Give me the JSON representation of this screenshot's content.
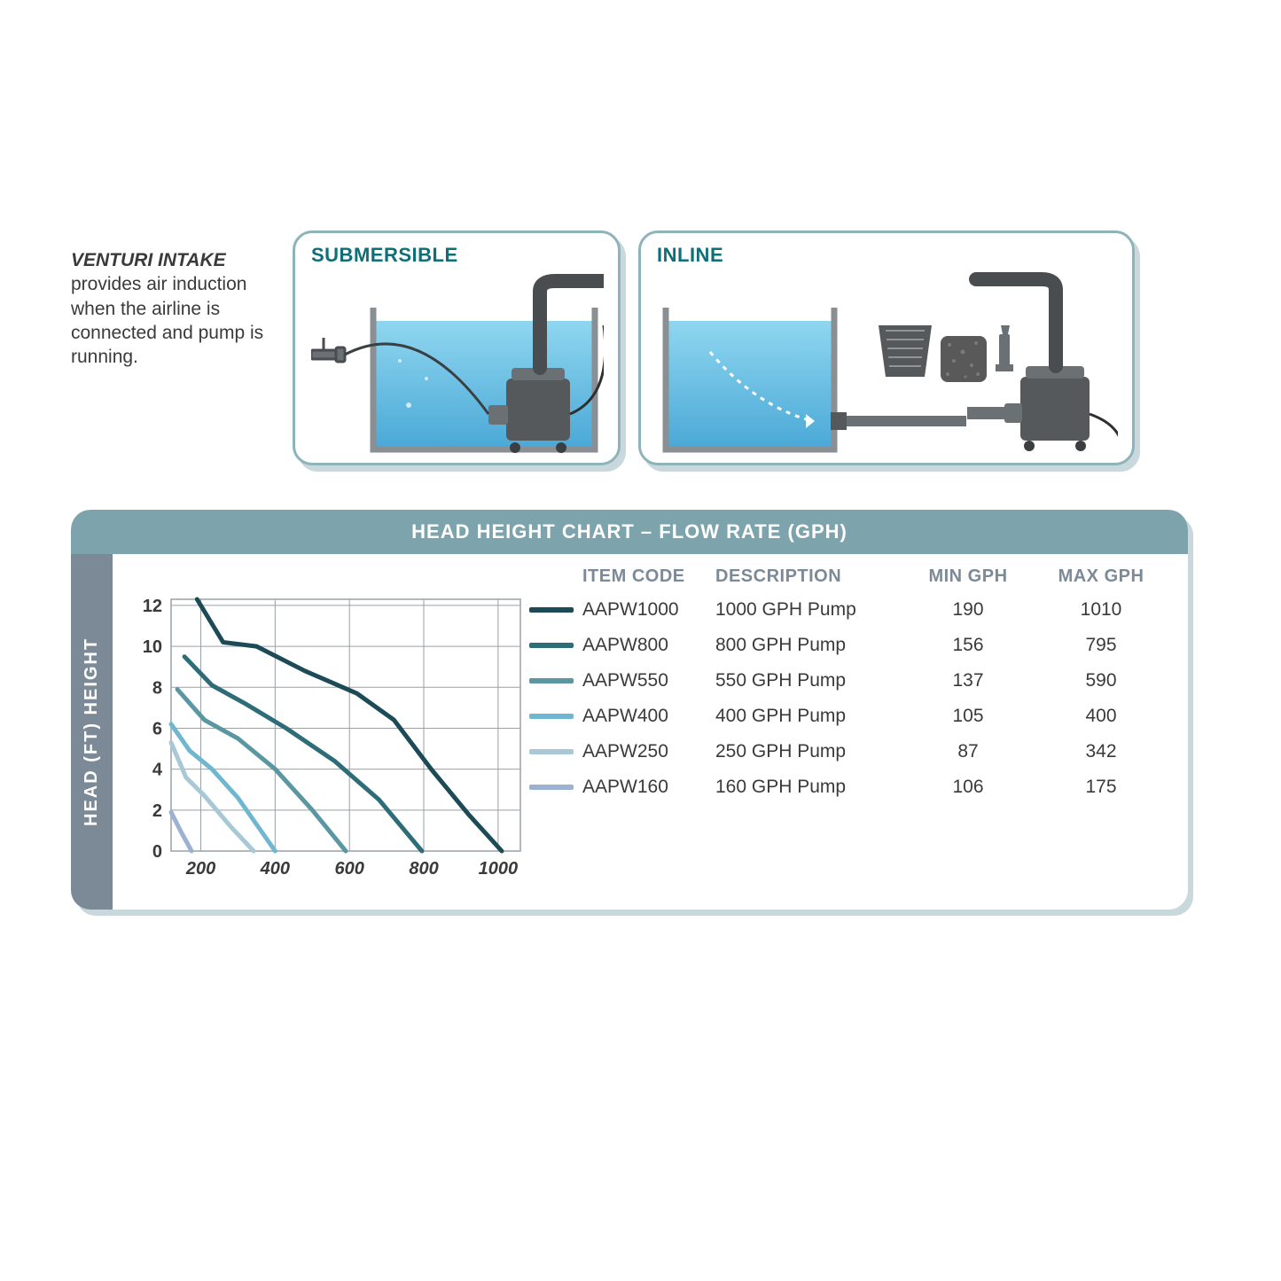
{
  "venturi": {
    "title": "VENTURI INTAKE",
    "body": "provides air induction when the airline is connected and pump is running."
  },
  "diagrams": {
    "submersible_label": "SUBMERSIBLE",
    "inline_label": "INLINE",
    "box_border": "#8db3bb",
    "box_shadow": "#c9d8dc",
    "title_color": "#0e6f79",
    "water_top": "#7fd0ef",
    "water_bottom": "#4aa8d6",
    "tank_stroke": "#8a8f93",
    "pump_dark": "#55595c",
    "pump_mid": "#6b7074",
    "hose": "#4a4d50",
    "callout_line": "#c7a23a"
  },
  "chart_panel": {
    "title": "HEAD HEIGHT CHART – FLOW RATE (GPH)",
    "title_bg": "#7da3ac",
    "side_label": "HEAD (FT) HEIGHT",
    "side_bg": "#7c8997",
    "columns": [
      "ITEM CODE",
      "DESCRIPTION",
      "MIN GPH",
      "MAX GPH"
    ],
    "header_color": "#7c8997",
    "grid_color": "#9aa0a5",
    "axis_text": "#3a3a3a",
    "axis_fontsize": 20,
    "line_width": 5,
    "xlim": [
      120,
      1060
    ],
    "ylim": [
      0,
      12.3
    ],
    "xticks": [
      200,
      400,
      600,
      800,
      1000
    ],
    "yticks": [
      0,
      2,
      4,
      6,
      8,
      10,
      12
    ],
    "series": [
      {
        "code": "AAPW1000",
        "desc": "1000 GPH Pump",
        "min": 190,
        "max": 1010,
        "color": "#1d4a57",
        "pts": [
          [
            190,
            12.4
          ],
          [
            260,
            10.2
          ],
          [
            350,
            10.0
          ],
          [
            480,
            8.8
          ],
          [
            620,
            7.7
          ],
          [
            720,
            6.4
          ],
          [
            820,
            4.0
          ],
          [
            920,
            1.8
          ],
          [
            1010,
            0
          ]
        ]
      },
      {
        "code": "AAPW800",
        "desc": "800 GPH Pump",
        "min": 156,
        "max": 795,
        "color": "#2e6d78",
        "pts": [
          [
            156,
            9.5
          ],
          [
            230,
            8.1
          ],
          [
            320,
            7.2
          ],
          [
            430,
            6.0
          ],
          [
            560,
            4.4
          ],
          [
            680,
            2.5
          ],
          [
            795,
            0
          ]
        ]
      },
      {
        "code": "AAPW550",
        "desc": "550 GPH Pump",
        "min": 137,
        "max": 590,
        "color": "#5a97a2",
        "pts": [
          [
            137,
            7.9
          ],
          [
            210,
            6.4
          ],
          [
            300,
            5.5
          ],
          [
            400,
            4.0
          ],
          [
            500,
            2.0
          ],
          [
            590,
            0
          ]
        ]
      },
      {
        "code": "AAPW400",
        "desc": "400 GPH Pump",
        "min": 105,
        "max": 400,
        "color": "#6fb7d0",
        "pts": [
          [
            120,
            6.2
          ],
          [
            170,
            4.9
          ],
          [
            230,
            4.0
          ],
          [
            300,
            2.6
          ],
          [
            400,
            0
          ]
        ]
      },
      {
        "code": "AAPW250",
        "desc": "250 GPH Pump",
        "min": 87,
        "max": 342,
        "color": "#a9c8d6",
        "pts": [
          [
            120,
            5.3
          ],
          [
            160,
            3.6
          ],
          [
            210,
            2.7
          ],
          [
            280,
            1.2
          ],
          [
            342,
            0
          ]
        ]
      },
      {
        "code": "AAPW160",
        "desc": "160 GPH Pump",
        "min": 106,
        "max": 175,
        "color": "#9db2d3",
        "pts": [
          [
            120,
            1.9
          ],
          [
            145,
            1.0
          ],
          [
            175,
            0
          ]
        ]
      }
    ]
  }
}
